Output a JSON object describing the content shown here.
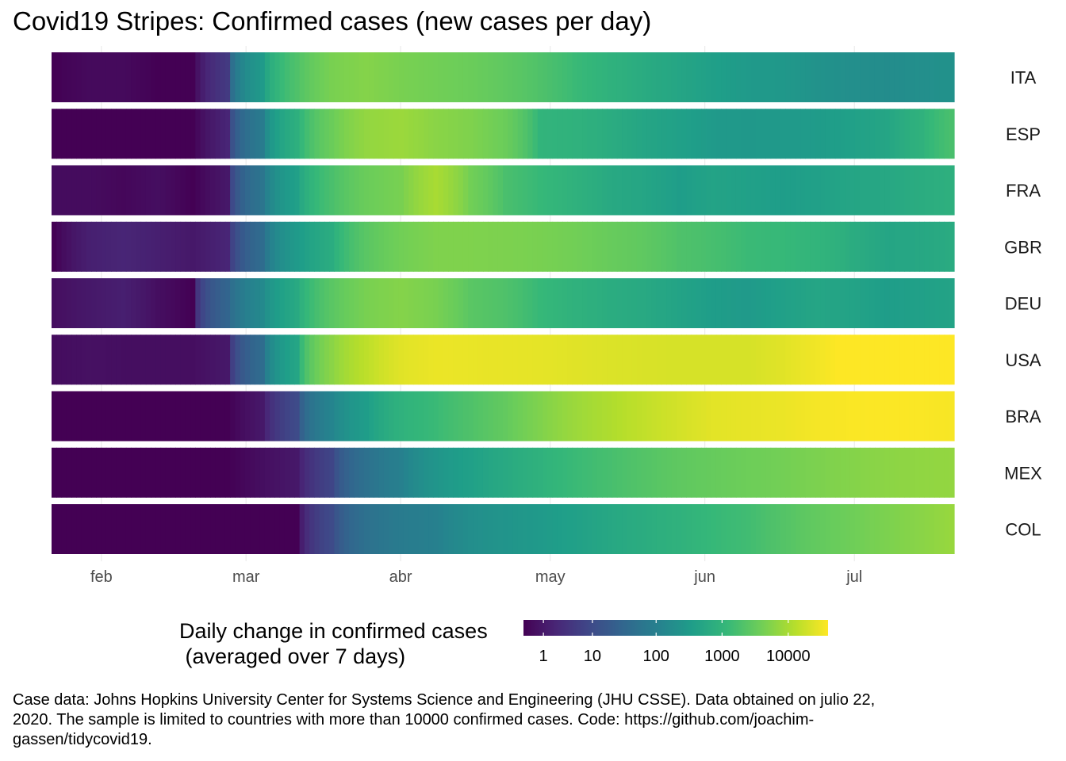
{
  "title": "Covid19 Stripes: Confirmed cases (new cases per day)",
  "caption": "Case data: Johns Hopkins University Center for Systems Science and Engineering (JHU CSSE). Data obtained on julio 22, 2020. The sample is limited to countries with more than 10000 confirmed cases. Code: https://github.com/joachim-gassen/tidycovid19.",
  "chart_data": {
    "type": "heatmap",
    "title": "Covid19 Stripes: Confirmed cases (new cases per day)",
    "x_range": [
      "2020-01-22",
      "2020-07-21"
    ],
    "x_tick_labels": [
      "feb",
      "mar",
      "abr",
      "may",
      "jun",
      "jul"
    ],
    "x_ticks": [
      "2020-02-01",
      "2020-03-01",
      "2020-04-01",
      "2020-05-01",
      "2020-06-01",
      "2020-07-01"
    ],
    "legend": {
      "title_line1": "Daily change in confirmed cases",
      "title_line2": " (averaged over 7 days)",
      "scale": "log10",
      "range": [
        0,
        40000
      ],
      "ticks": [
        1,
        10,
        100,
        1000,
        10000
      ],
      "tick_labels": [
        "1",
        "10",
        "100",
        "1000",
        "10000"
      ],
      "palette": [
        "#440154",
        "#482878",
        "#3e4a89",
        "#31688e",
        "#26828e",
        "#1f9e89",
        "#35b779",
        "#6ece58",
        "#b5de2b",
        "#fde725"
      ],
      "placement": "bottom"
    },
    "series": [
      {
        "name": "ITA",
        "dates": [
          "2020-01-22",
          "2020-01-29",
          "2020-02-05",
          "2020-02-12",
          "2020-02-19",
          "2020-02-26",
          "2020-03-04",
          "2020-03-11",
          "2020-03-18",
          "2020-03-25",
          "2020-04-01",
          "2020-04-08",
          "2020-04-15",
          "2020-04-22",
          "2020-04-29",
          "2020-05-06",
          "2020-05-13",
          "2020-05-20",
          "2020-05-27",
          "2020-06-03",
          "2020-06-10",
          "2020-06-17",
          "2020-06-24",
          "2020-07-01",
          "2020-07-08",
          "2020-07-15",
          "2020-07-21"
        ],
        "values": [
          0,
          0.3,
          0.3,
          0,
          0,
          5,
          300,
          2000,
          4500,
          5500,
          4500,
          4000,
          3500,
          2800,
          2000,
          1300,
          900,
          650,
          500,
          380,
          300,
          280,
          220,
          190,
          170,
          190,
          210
        ]
      },
      {
        "name": "ESP",
        "dates": [
          "2020-01-22",
          "2020-01-29",
          "2020-02-05",
          "2020-02-12",
          "2020-02-19",
          "2020-02-26",
          "2020-03-04",
          "2020-03-11",
          "2020-03-18",
          "2020-03-25",
          "2020-04-01",
          "2020-04-08",
          "2020-04-15",
          "2020-04-22",
          "2020-04-29",
          "2020-05-06",
          "2020-05-13",
          "2020-05-20",
          "2020-05-27",
          "2020-06-03",
          "2020-06-10",
          "2020-06-17",
          "2020-06-24",
          "2020-07-01",
          "2020-07-08",
          "2020-07-15",
          "2020-07-21"
        ],
        "values": [
          0,
          0,
          0,
          0,
          0,
          2,
          80,
          800,
          3500,
          7000,
          8000,
          6000,
          5000,
          3500,
          1000,
          900,
          700,
          500,
          400,
          300,
          280,
          300,
          320,
          400,
          500,
          900,
          1800
        ]
      },
      {
        "name": "FRA",
        "dates": [
          "2020-01-22",
          "2020-01-29",
          "2020-02-05",
          "2020-02-12",
          "2020-02-19",
          "2020-02-26",
          "2020-03-04",
          "2020-03-11",
          "2020-03-18",
          "2020-03-25",
          "2020-04-01",
          "2020-04-08",
          "2020-04-15",
          "2020-04-22",
          "2020-04-29",
          "2020-05-06",
          "2020-05-13",
          "2020-05-20",
          "2020-05-27",
          "2020-06-03",
          "2020-06-10",
          "2020-06-17",
          "2020-06-24",
          "2020-07-01",
          "2020-07-08",
          "2020-07-15",
          "2020-07-21"
        ],
        "values": [
          0.4,
          0.4,
          0.2,
          0.5,
          0,
          1,
          60,
          400,
          1800,
          3500,
          4500,
          10000,
          4000,
          1800,
          1200,
          900,
          600,
          500,
          350,
          450,
          400,
          350,
          400,
          500,
          550,
          700,
          800
        ]
      },
      {
        "name": "GBR",
        "dates": [
          "2020-01-22",
          "2020-01-29",
          "2020-02-05",
          "2020-02-12",
          "2020-02-19",
          "2020-02-26",
          "2020-03-04",
          "2020-03-11",
          "2020-03-18",
          "2020-03-25",
          "2020-04-01",
          "2020-04-08",
          "2020-04-15",
          "2020-04-22",
          "2020-04-29",
          "2020-05-06",
          "2020-05-13",
          "2020-05-20",
          "2020-05-27",
          "2020-06-03",
          "2020-06-10",
          "2020-06-17",
          "2020-06-24",
          "2020-07-01",
          "2020-07-08",
          "2020-07-15",
          "2020-07-21"
        ],
        "values": [
          0,
          1.5,
          2,
          1.5,
          1,
          2,
          40,
          300,
          700,
          2500,
          4000,
          5000,
          5000,
          4800,
          4500,
          4000,
          3300,
          2800,
          2000,
          1700,
          1300,
          1200,
          1000,
          700,
          500,
          550,
          650
        ]
      },
      {
        "name": "DEU",
        "dates": [
          "2020-01-22",
          "2020-01-29",
          "2020-02-05",
          "2020-02-12",
          "2020-02-19",
          "2020-02-26",
          "2020-03-04",
          "2020-03-11",
          "2020-03-18",
          "2020-03-25",
          "2020-04-01",
          "2020-04-08",
          "2020-04-15",
          "2020-04-22",
          "2020-04-29",
          "2020-05-06",
          "2020-05-13",
          "2020-05-20",
          "2020-05-27",
          "2020-06-03",
          "2020-06-10",
          "2020-06-17",
          "2020-06-24",
          "2020-07-01",
          "2020-07-08",
          "2020-07-15",
          "2020-07-21"
        ],
        "values": [
          0.5,
          1,
          1.5,
          0.5,
          0,
          30,
          150,
          600,
          2500,
          4500,
          5500,
          4500,
          2500,
          2000,
          1200,
          900,
          700,
          600,
          450,
          350,
          300,
          400,
          500,
          450,
          350,
          400,
          450
        ]
      },
      {
        "name": "USA",
        "dates": [
          "2020-01-22",
          "2020-01-29",
          "2020-02-05",
          "2020-02-12",
          "2020-02-19",
          "2020-02-26",
          "2020-03-04",
          "2020-03-11",
          "2020-03-18",
          "2020-03-25",
          "2020-04-01",
          "2020-04-08",
          "2020-04-15",
          "2020-04-22",
          "2020-04-29",
          "2020-05-06",
          "2020-05-13",
          "2020-05-20",
          "2020-05-27",
          "2020-06-03",
          "2020-06-10",
          "2020-06-17",
          "2020-06-24",
          "2020-07-01",
          "2020-07-08",
          "2020-07-15",
          "2020-07-21"
        ],
        "values": [
          0.4,
          0.6,
          0.5,
          0.5,
          0.5,
          1,
          40,
          500,
          6000,
          14000,
          25000,
          30000,
          29000,
          28000,
          27000,
          25000,
          23000,
          22000,
          21000,
          21000,
          21000,
          25000,
          33000,
          45000,
          55000,
          65000,
          68000
        ]
      },
      {
        "name": "BRA",
        "dates": [
          "2020-01-22",
          "2020-01-29",
          "2020-02-05",
          "2020-02-12",
          "2020-02-19",
          "2020-02-26",
          "2020-03-04",
          "2020-03-11",
          "2020-03-18",
          "2020-03-25",
          "2020-04-01",
          "2020-04-08",
          "2020-04-15",
          "2020-04-22",
          "2020-04-29",
          "2020-05-06",
          "2020-05-13",
          "2020-05-20",
          "2020-05-27",
          "2020-06-03",
          "2020-06-10",
          "2020-06-17",
          "2020-06-24",
          "2020-07-01",
          "2020-07-08",
          "2020-07-15",
          "2020-07-21"
        ],
        "values": [
          0,
          0,
          0,
          0,
          0,
          0,
          1,
          10,
          120,
          350,
          900,
          1300,
          2000,
          3000,
          5000,
          8000,
          11000,
          15000,
          20000,
          26000,
          28000,
          30000,
          35000,
          38000,
          39000,
          38000,
          36000
        ]
      },
      {
        "name": "MEX",
        "dates": [
          "2020-01-22",
          "2020-01-29",
          "2020-02-05",
          "2020-02-12",
          "2020-02-19",
          "2020-02-26",
          "2020-03-04",
          "2020-03-11",
          "2020-03-18",
          "2020-03-25",
          "2020-04-01",
          "2020-04-08",
          "2020-04-15",
          "2020-04-22",
          "2020-04-29",
          "2020-05-06",
          "2020-05-13",
          "2020-05-20",
          "2020-05-27",
          "2020-06-03",
          "2020-06-10",
          "2020-06-17",
          "2020-06-24",
          "2020-07-01",
          "2020-07-08",
          "2020-07-15",
          "2020-07-21"
        ],
        "values": [
          0,
          0,
          0,
          0,
          0,
          0,
          0.5,
          1,
          8,
          50,
          100,
          250,
          400,
          600,
          900,
          1300,
          1700,
          2200,
          2800,
          3200,
          3700,
          4100,
          4800,
          5500,
          6200,
          6700,
          7000
        ]
      },
      {
        "name": "COL",
        "dates": [
          "2020-01-22",
          "2020-01-29",
          "2020-02-05",
          "2020-02-12",
          "2020-02-19",
          "2020-02-26",
          "2020-03-04",
          "2020-03-11",
          "2020-03-18",
          "2020-03-25",
          "2020-04-01",
          "2020-04-08",
          "2020-04-15",
          "2020-04-22",
          "2020-04-29",
          "2020-05-06",
          "2020-05-13",
          "2020-05-20",
          "2020-05-27",
          "2020-06-03",
          "2020-06-10",
          "2020-06-17",
          "2020-06-24",
          "2020-07-01",
          "2020-07-08",
          "2020-07-15",
          "2020-07-21"
        ],
        "values": [
          0,
          0,
          0,
          0,
          0,
          0,
          0,
          0,
          10,
          50,
          80,
          100,
          180,
          240,
          300,
          400,
          550,
          700,
          900,
          1200,
          1500,
          2200,
          3000,
          3800,
          4800,
          6000,
          7500
        ]
      }
    ]
  }
}
